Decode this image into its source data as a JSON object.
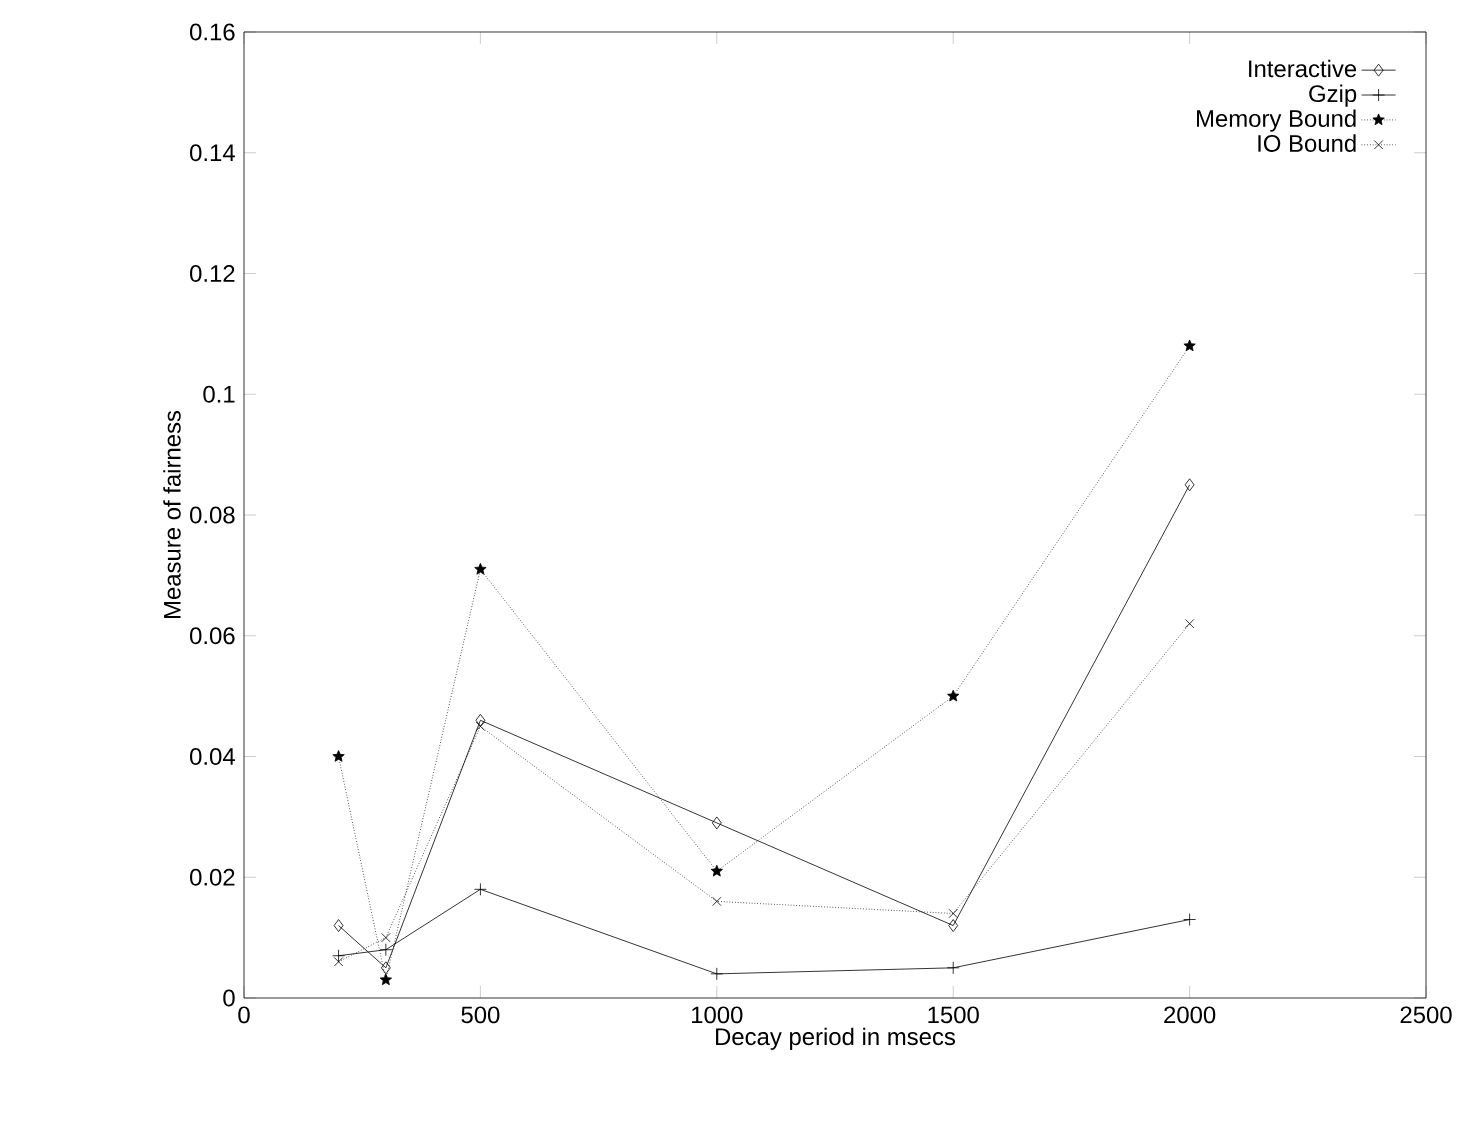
{
  "chart_data": {
    "type": "line",
    "xlabel": "Decay period in msecs",
    "ylabel": "Measure of fairness",
    "x": [
      200,
      300,
      500,
      1000,
      1500,
      2000
    ],
    "series": [
      {
        "name": "Interactive",
        "color": "#000000",
        "marker": "diamond",
        "line_style": "solid",
        "values": [
          0.012,
          0.005,
          0.046,
          0.029,
          0.012,
          0.085
        ]
      },
      {
        "name": "Gzip",
        "color": "#000000",
        "marker": "cross",
        "line_style": "solid",
        "values": [
          0.007,
          0.008,
          0.018,
          0.004,
          0.005,
          0.013
        ]
      },
      {
        "name": "Memory Bound",
        "color": "#000000",
        "marker": "star",
        "line_style": "dotted",
        "values": [
          0.04,
          0.003,
          0.071,
          0.021,
          0.05,
          0.108
        ]
      },
      {
        "name": "IO Bound",
        "color": "#000000",
        "marker": "x",
        "line_style": "dotted",
        "values": [
          0.006,
          0.01,
          0.045,
          0.016,
          0.014,
          0.062
        ]
      }
    ],
    "xlim": [
      0,
      2500
    ],
    "ylim": [
      0,
      0.16
    ],
    "xticks": [
      0,
      500,
      1000,
      1500,
      2000,
      2500
    ],
    "yticks": [
      0,
      0.02,
      0.04,
      0.06,
      0.08,
      0.1,
      0.12,
      0.14,
      0.16
    ],
    "grid": false,
    "legend": "top right"
  }
}
